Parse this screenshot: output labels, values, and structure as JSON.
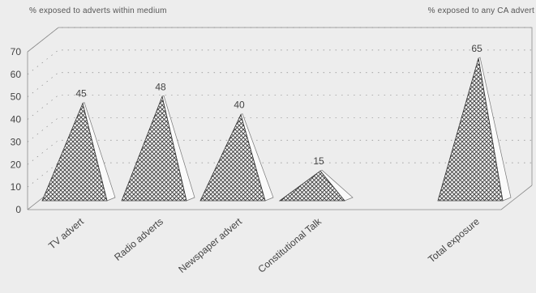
{
  "chart_data": {
    "type": "bar",
    "subtitle_left": "% exposed to adverts within medium",
    "subtitle_right": "% exposed to any CA advert",
    "categories": [
      "TV advert",
      "Radio adverts",
      "Newspaper advert",
      "Constitutional Talk",
      "Total exposure"
    ],
    "values": [
      45,
      48,
      40,
      15,
      65
    ],
    "yticks": [
      0,
      10,
      20,
      30,
      40,
      50,
      60,
      70
    ],
    "ylim": [
      0,
      70
    ],
    "grid": true,
    "colors": {
      "fill": "#4a4a4a",
      "background": "#ededed",
      "grid": "#8a8a8a"
    }
  }
}
